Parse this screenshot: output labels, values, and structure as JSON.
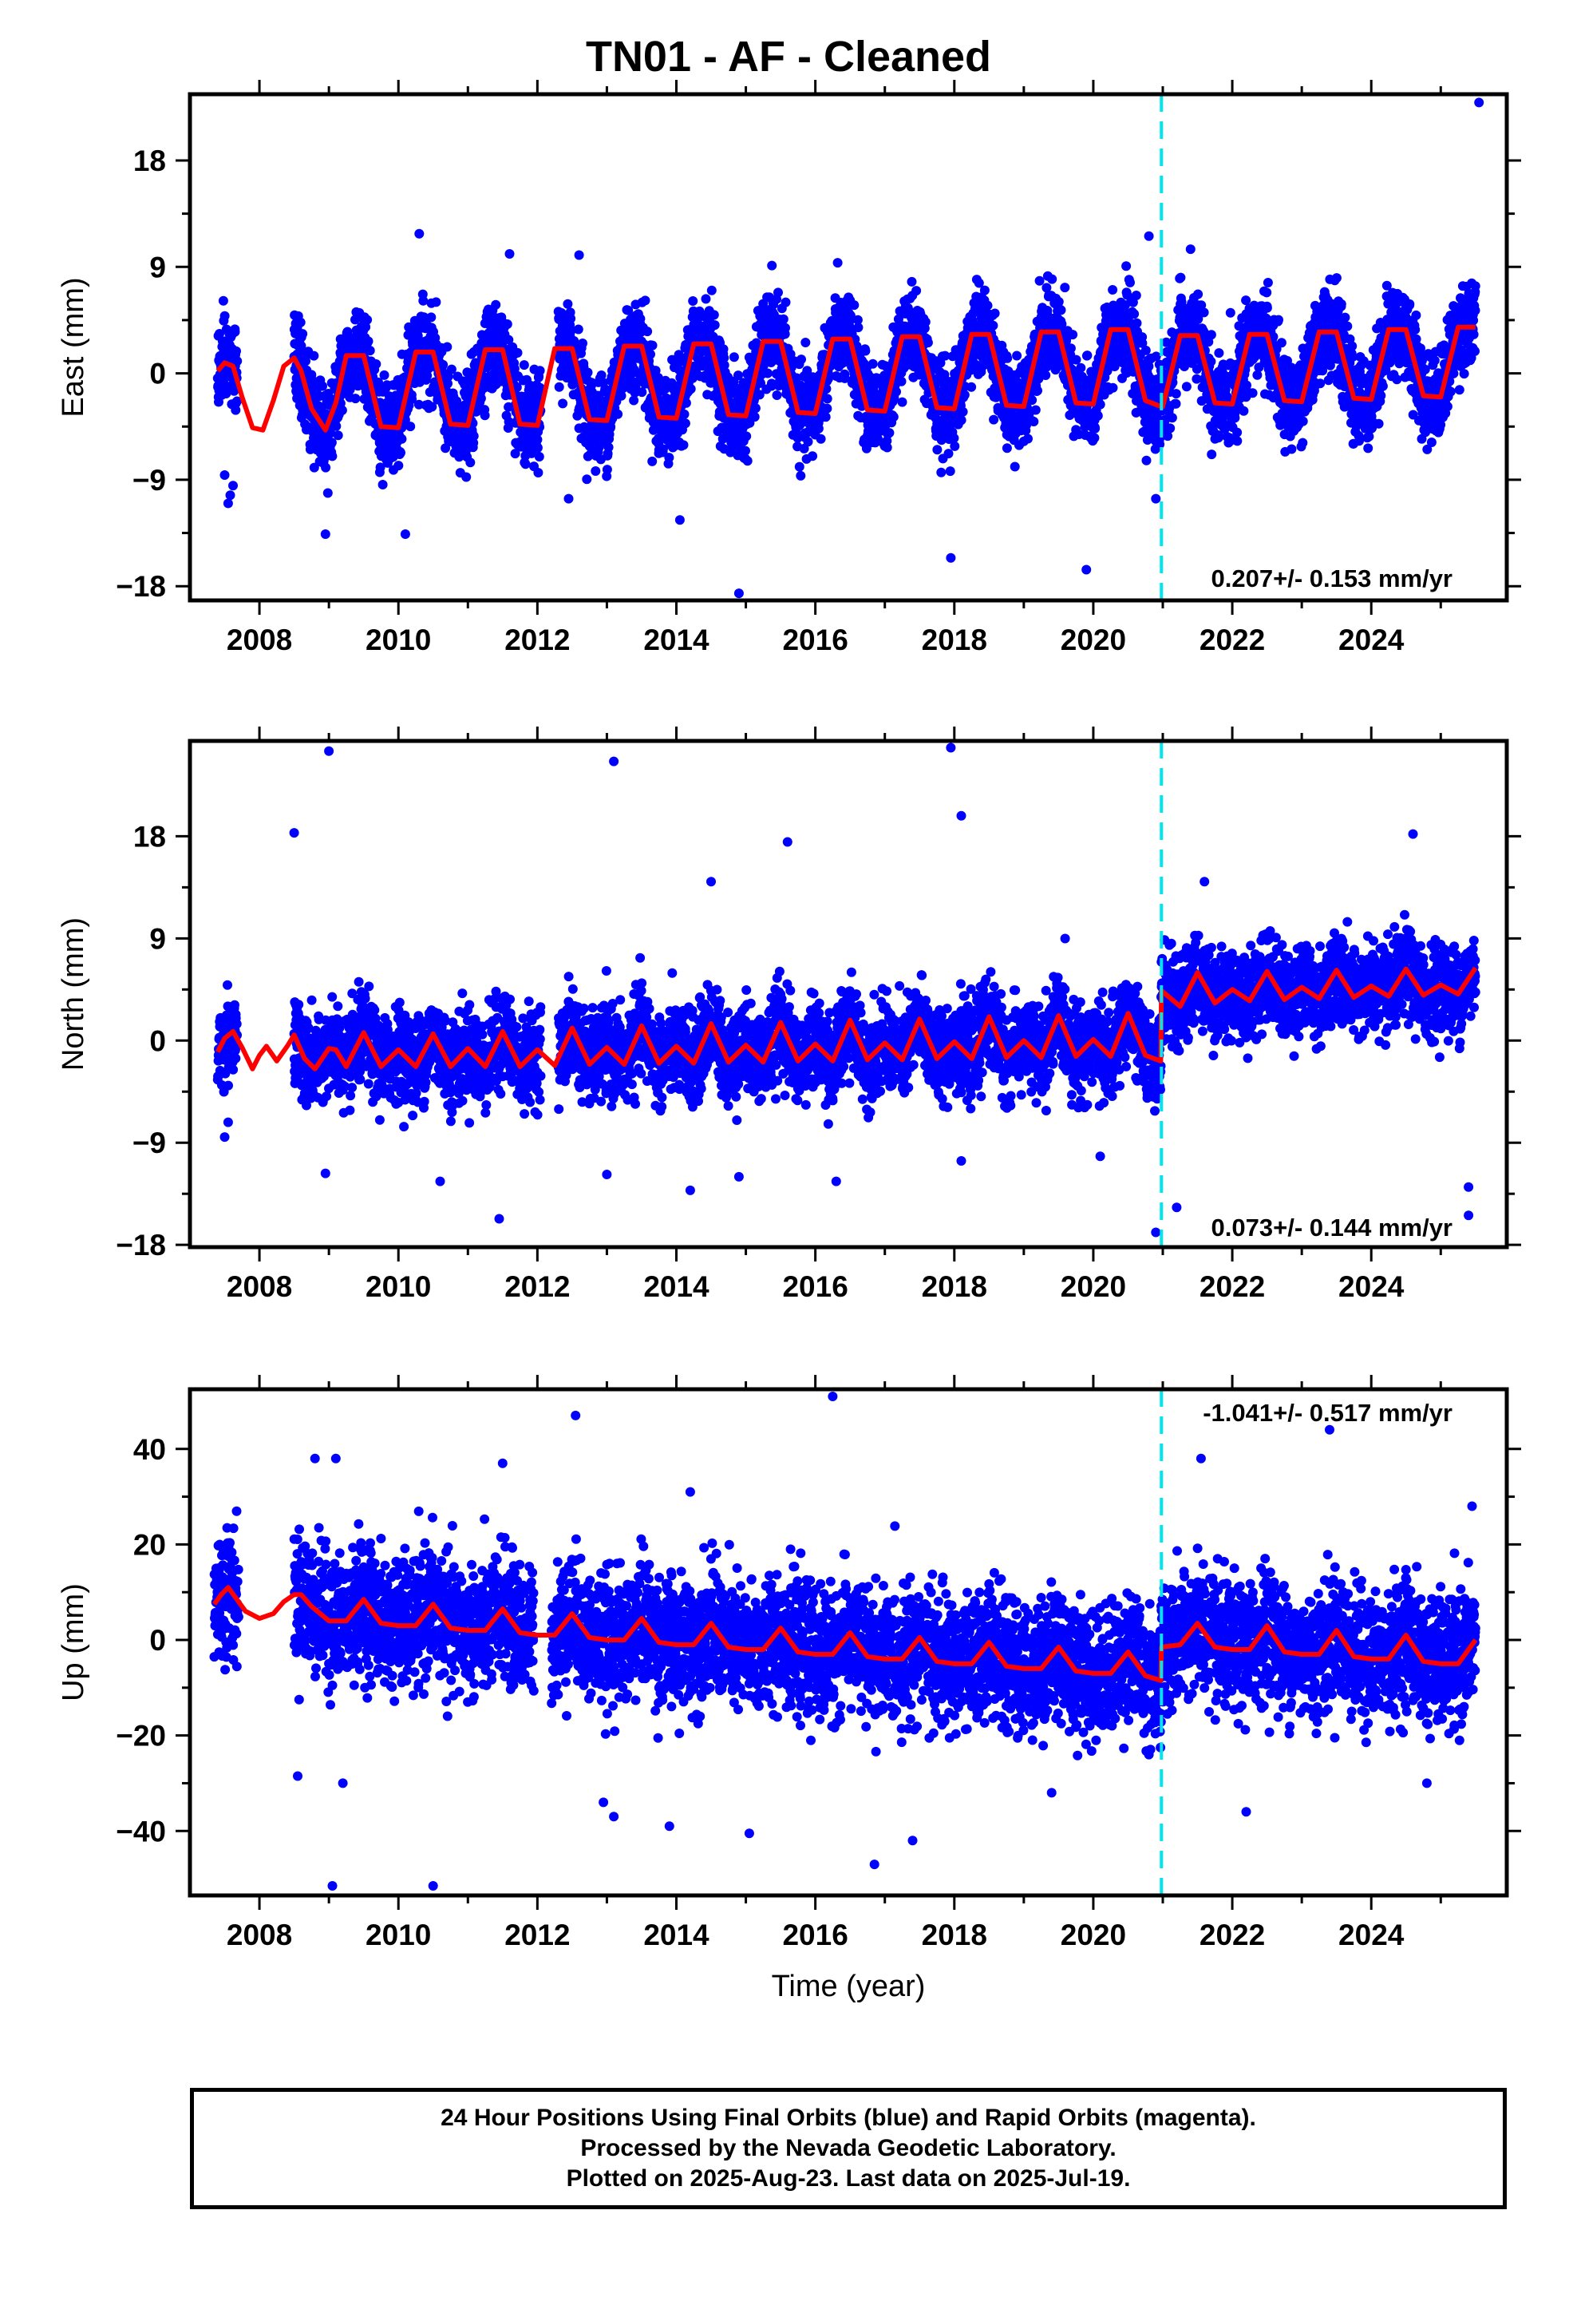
{
  "page": {
    "title": "TN01  - AF - Cleaned",
    "footer_lines": [
      "24 Hour Positions Using Final Orbits (blue) and Rapid Orbits (magenta).",
      "Processed by the Nevada Geodetic Laboratory.",
      "Plotted on 2025-Aug-23. Last data on 2025-Jul-19."
    ]
  },
  "colors": {
    "points": "#0000ff",
    "model": "#ff0000",
    "offset_line": "#00e5ee"
  },
  "chart_data": [
    {
      "type": "scatter",
      "panel": "east",
      "title": "",
      "xlabel": "",
      "ylabel": "East (mm)",
      "xlim": [
        2007.0,
        2025.95
      ],
      "ylim": [
        -19.2,
        23.6
      ],
      "yticks": [
        -18,
        -9,
        0,
        9,
        18
      ],
      "ytick_labels": [
        "−18",
        "−9",
        "0",
        "9",
        "18"
      ],
      "xticks": [
        2008,
        2010,
        2012,
        2014,
        2016,
        2018,
        2020,
        2022,
        2024
      ],
      "rate_text": "0.207+/- 0.153 mm/yr",
      "offset_epoch": 2020.98,
      "series": [
        {
          "kind": "model",
          "x": [
            2007.4,
            2007.5,
            2007.62,
            2007.75,
            2007.9,
            2008.05,
            2008.2,
            2008.35,
            2008.5,
            2008.6,
            2008.75,
            2008.95,
            2009.1,
            2009.25,
            2009.5,
            2009.75,
            2010.0,
            2010.25,
            2010.5,
            2010.75,
            2011.0,
            2011.25,
            2011.5,
            2011.75,
            2012.0,
            2012.25,
            2012.5,
            2012.75,
            2013.0,
            2013.25,
            2013.5,
            2013.75,
            2014.0,
            2014.25,
            2014.5,
            2014.75,
            2015.0,
            2015.25,
            2015.5,
            2015.75,
            2016.0,
            2016.25,
            2016.5,
            2016.75,
            2017.0,
            2017.25,
            2017.5,
            2017.75,
            2018.0,
            2018.25,
            2018.5,
            2018.75,
            2019.0,
            2019.25,
            2019.5,
            2019.75,
            2020.0,
            2020.25,
            2020.5,
            2020.75,
            2020.97,
            2021.0,
            2021.25,
            2021.5,
            2021.75,
            2022.0,
            2022.25,
            2022.5,
            2022.75,
            2023.0,
            2023.25,
            2023.5,
            2023.75,
            2024.0,
            2024.25,
            2024.5,
            2024.75,
            2025.0,
            2025.25,
            2025.5
          ],
          "y": [
            0.2,
            0.9,
            0.6,
            -2.0,
            -4.6,
            -4.8,
            -2.3,
            0.6,
            1.3,
            0.2,
            -3.0,
            -4.8,
            -2.5,
            1.5,
            1.5,
            -4.5,
            -4.6,
            1.8,
            1.8,
            -4.3,
            -4.4,
            2.0,
            2.0,
            -4.3,
            -4.4,
            2.1,
            2.1,
            -3.9,
            -4.0,
            2.3,
            2.3,
            -3.7,
            -3.8,
            2.5,
            2.5,
            -3.5,
            -3.6,
            2.7,
            2.7,
            -3.3,
            -3.4,
            2.9,
            2.9,
            -3.1,
            -3.2,
            3.1,
            3.1,
            -2.9,
            -3.0,
            3.3,
            3.3,
            -2.7,
            -2.8,
            3.5,
            3.5,
            -2.5,
            -2.6,
            3.7,
            3.7,
            -2.3,
            -2.8,
            -2.8,
            3.2,
            3.2,
            -2.5,
            -2.6,
            3.3,
            3.3,
            -2.3,
            -2.4,
            3.5,
            3.5,
            -2.1,
            -2.2,
            3.7,
            3.7,
            -1.9,
            -2.0,
            3.9,
            3.9
          ]
        },
        {
          "kind": "observations",
          "cloud_model_ref": "model",
          "noise_sd_mm": 1.8,
          "gaps": [
            [
              2007.68,
              2008.5
            ],
            [
              2012.05,
              2012.3
            ]
          ],
          "outliers": [
            [
              2010.3,
              11.8
            ],
            [
              2011.6,
              10.1
            ],
            [
              2012.6,
              10.0
            ],
            [
              2020.8,
              11.6
            ],
            [
              2021.4,
              10.5
            ],
            [
              2025.55,
              22.9
            ],
            [
              2008.95,
              -13.6
            ],
            [
              2010.1,
              -13.6
            ],
            [
              2012.45,
              -10.6
            ],
            [
              2014.05,
              -12.4
            ],
            [
              2014.9,
              -18.6
            ],
            [
              2017.95,
              -15.6
            ],
            [
              2019.9,
              -16.6
            ],
            [
              2020.9,
              -10.6
            ],
            [
              2007.55,
              -11.0
            ],
            [
              2007.62,
              -9.5
            ],
            [
              2007.5,
              -8.6
            ],
            [
              2007.58,
              -10.3
            ]
          ]
        }
      ]
    },
    {
      "type": "scatter",
      "panel": "north",
      "title": "",
      "xlabel": "",
      "ylabel": "North (mm)",
      "xlim": [
        2007.0,
        2025.95
      ],
      "ylim": [
        -18.2,
        26.4
      ],
      "yticks": [
        -18,
        -9,
        0,
        9,
        18
      ],
      "ytick_labels": [
        "−18",
        "−9",
        "0",
        "9",
        "18"
      ],
      "xticks": [
        2008,
        2010,
        2012,
        2014,
        2016,
        2018,
        2020,
        2022,
        2024
      ],
      "rate_text": "0.073+/- 0.144 mm/yr",
      "offset_epoch": 2020.98,
      "series": [
        {
          "kind": "model",
          "x": [
            2007.4,
            2007.5,
            2007.62,
            2007.75,
            2007.9,
            2008.0,
            2008.1,
            2008.25,
            2008.4,
            2008.5,
            2008.65,
            2008.8,
            2009.0,
            2009.1,
            2009.25,
            2009.5,
            2009.75,
            2010.0,
            2010.25,
            2010.5,
            2010.75,
            2011.0,
            2011.25,
            2011.5,
            2011.75,
            2012.0,
            2012.25,
            2012.5,
            2012.75,
            2013.0,
            2013.25,
            2013.5,
            2013.75,
            2014.0,
            2014.25,
            2014.5,
            2014.75,
            2015.0,
            2015.25,
            2015.5,
            2015.75,
            2016.0,
            2016.25,
            2016.5,
            2016.75,
            2017.0,
            2017.25,
            2017.5,
            2017.75,
            2018.0,
            2018.25,
            2018.5,
            2018.75,
            2019.0,
            2019.25,
            2019.5,
            2019.75,
            2020.0,
            2020.25,
            2020.5,
            2020.75,
            2020.97,
            2020.98,
            2021.25,
            2021.5,
            2021.75,
            2022.0,
            2022.25,
            2022.5,
            2022.75,
            2023.0,
            2023.25,
            2023.5,
            2023.75,
            2024.0,
            2024.25,
            2024.5,
            2024.75,
            2025.0,
            2025.25,
            2025.5
          ],
          "y": [
            -1.0,
            0.2,
            0.8,
            -0.6,
            -2.5,
            -1.3,
            -0.5,
            -1.8,
            -0.5,
            0.5,
            -1.6,
            -2.5,
            -0.7,
            -0.8,
            -2.3,
            0.7,
            -2.3,
            -0.8,
            -2.3,
            0.6,
            -2.3,
            -0.7,
            -2.3,
            0.8,
            -2.3,
            -0.8,
            -2.2,
            1.1,
            -2.1,
            -0.6,
            -2.1,
            1.3,
            -2.0,
            -0.5,
            -2.0,
            1.5,
            -1.9,
            -0.4,
            -1.9,
            1.6,
            -1.8,
            -0.3,
            -1.8,
            1.8,
            -1.7,
            -0.2,
            -1.7,
            1.9,
            -1.6,
            -0.1,
            -1.6,
            2.1,
            -1.5,
            0.0,
            -1.5,
            2.2,
            -1.4,
            0.1,
            -1.4,
            2.4,
            -1.3,
            -1.8,
            4.4,
            3.0,
            6.0,
            3.3,
            4.5,
            3.5,
            6.1,
            3.6,
            4.7,
            3.7,
            6.2,
            3.8,
            4.8,
            3.9,
            6.3,
            4.0,
            4.9,
            4.1,
            6.4
          ]
        },
        {
          "kind": "observations",
          "cloud_model_ref": "model",
          "noise_sd_mm": 1.9,
          "gaps": [
            [
              2007.68,
              2008.5
            ],
            [
              2012.05,
              2012.3
            ]
          ],
          "outliers": [
            [
              2009.0,
              25.5
            ],
            [
              2013.1,
              24.6
            ],
            [
              2017.95,
              25.8
            ],
            [
              2008.5,
              18.3
            ],
            [
              2018.1,
              19.8
            ],
            [
              2015.6,
              17.5
            ],
            [
              2014.5,
              14.0
            ],
            [
              2021.6,
              14.0
            ],
            [
              2024.6,
              18.2
            ],
            [
              2008.95,
              -11.7
            ],
            [
              2010.6,
              -12.4
            ],
            [
              2011.45,
              -15.7
            ],
            [
              2013.0,
              -11.8
            ],
            [
              2014.2,
              -13.2
            ],
            [
              2014.9,
              -12.0
            ],
            [
              2016.3,
              -12.4
            ],
            [
              2018.1,
              -10.6
            ],
            [
              2020.1,
              -10.2
            ],
            [
              2020.9,
              -16.9
            ],
            [
              2021.2,
              -14.7
            ],
            [
              2025.4,
              -12.9
            ],
            [
              2025.4,
              -15.4
            ],
            [
              2007.5,
              -8.5
            ],
            [
              2007.55,
              -7.2
            ]
          ]
        }
      ]
    },
    {
      "type": "scatter",
      "panel": "up",
      "title": "",
      "xlabel": "Time (year)",
      "ylabel": "Up (mm)",
      "xlim": [
        2007.0,
        2025.95
      ],
      "ylim": [
        -53.5,
        52.5
      ],
      "yticks": [
        -40,
        -20,
        0,
        20,
        40
      ],
      "ytick_labels": [
        "−40",
        "−20",
        "0",
        "20",
        "40"
      ],
      "xticks": [
        2008,
        2010,
        2012,
        2014,
        2016,
        2018,
        2020,
        2022,
        2024
      ],
      "rate_text": "-1.041+/- 0.517 mm/yr",
      "offset_epoch": 2020.98,
      "series": [
        {
          "kind": "model",
          "x": [
            2007.35,
            2007.45,
            2007.55,
            2007.65,
            2007.8,
            2008.0,
            2008.2,
            2008.35,
            2008.5,
            2008.6,
            2008.75,
            2009.0,
            2009.25,
            2009.5,
            2009.75,
            2010.0,
            2010.25,
            2010.5,
            2010.75,
            2011.0,
            2011.25,
            2011.5,
            2011.75,
            2012.0,
            2012.25,
            2012.5,
            2012.75,
            2013.0,
            2013.25,
            2013.5,
            2013.75,
            2014.0,
            2014.25,
            2014.5,
            2014.75,
            2015.0,
            2015.25,
            2015.5,
            2015.75,
            2016.0,
            2016.25,
            2016.5,
            2016.75,
            2017.0,
            2017.25,
            2017.5,
            2017.75,
            2018.0,
            2018.25,
            2018.5,
            2018.75,
            2019.0,
            2019.25,
            2019.5,
            2019.75,
            2020.0,
            2020.25,
            2020.5,
            2020.75,
            2020.97,
            2020.98,
            2021.25,
            2021.5,
            2021.75,
            2022.0,
            2022.25,
            2022.5,
            2022.75,
            2023.0,
            2023.25,
            2023.5,
            2023.75,
            2024.0,
            2024.25,
            2024.5,
            2024.75,
            2025.0,
            2025.25,
            2025.5
          ],
          "y": [
            7.5,
            9.5,
            11.0,
            9.0,
            6.0,
            4.5,
            5.5,
            8.0,
            9.5,
            9.5,
            7.0,
            4.0,
            4.0,
            8.5,
            3.5,
            3.0,
            3.0,
            7.5,
            2.5,
            2.0,
            2.0,
            6.5,
            1.5,
            1.0,
            1.0,
            5.5,
            0.5,
            0.0,
            0.0,
            4.5,
            -0.5,
            -1.0,
            -1.0,
            3.5,
            -1.5,
            -2.0,
            -2.0,
            2.5,
            -2.5,
            -3.0,
            -3.0,
            1.5,
            -3.5,
            -4.0,
            -4.0,
            0.5,
            -4.5,
            -5.0,
            -5.0,
            -0.5,
            -5.5,
            -6.0,
            -6.0,
            -1.5,
            -6.5,
            -7.0,
            -7.0,
            -2.5,
            -7.5,
            -8.5,
            -1.5,
            -1.0,
            3.5,
            -1.5,
            -2.0,
            -2.0,
            3.0,
            -2.5,
            -3.0,
            -3.0,
            2.0,
            -3.5,
            -4.0,
            -4.0,
            1.0,
            -4.5,
            -5.0,
            -5.0,
            0.0
          ]
        },
        {
          "kind": "observations",
          "cloud_model_ref": "model",
          "noise_sd_mm": 6.5,
          "gaps": [
            [
              2007.7,
              2008.5
            ],
            [
              2011.95,
              2012.2
            ]
          ],
          "outliers": [
            [
              2012.55,
              47.0
            ],
            [
              2016.25,
              51.0
            ],
            [
              2023.4,
              44.0
            ],
            [
              2008.8,
              38.0
            ],
            [
              2009.1,
              38.0
            ],
            [
              2011.5,
              37.0
            ],
            [
              2021.55,
              38.0
            ],
            [
              2014.2,
              31.0
            ],
            [
              2025.45,
              28.0
            ],
            [
              2009.05,
              -51.5
            ],
            [
              2010.5,
              -51.5
            ],
            [
              2016.85,
              -47.0
            ],
            [
              2017.4,
              -42.0
            ],
            [
              2015.05,
              -40.5
            ],
            [
              2013.9,
              -39.0
            ],
            [
              2013.1,
              -37.0
            ],
            [
              2022.2,
              -36.0
            ],
            [
              2012.95,
              -34.0
            ],
            [
              2019.4,
              -32.0
            ],
            [
              2024.8,
              -30.0
            ],
            [
              2008.55,
              -28.5
            ],
            [
              2009.2,
              -30.0
            ],
            [
              2020.8,
              -24.0
            ]
          ]
        }
      ]
    }
  ]
}
